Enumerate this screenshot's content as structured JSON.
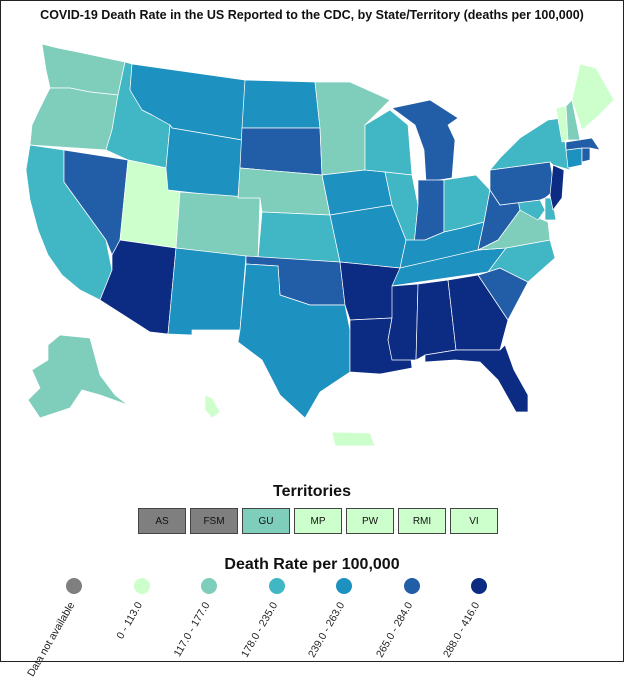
{
  "title": "COVID-19 Death Rate in the US Reported to the CDC, by State/Territory (deaths per 100,000)",
  "territories_title": "Territories",
  "legend_title": "Death Rate per 100,000",
  "colors": {
    "na": "#7f7f7f",
    "c1": "#ccffcc",
    "c2": "#7fcdbb",
    "c3": "#41b6c4",
    "c4": "#1d91c0",
    "c5": "#225ea8",
    "c6": "#0c2c84"
  },
  "chart_data": {
    "type": "choropleth",
    "legend": [
      {
        "label": "Data not available",
        "color": "#7f7f7f"
      },
      {
        "label": "0 - 113.0",
        "color": "#ccffcc"
      },
      {
        "label": "117.0 - 177.0",
        "color": "#7fcdbb"
      },
      {
        "label": "178.0 - 235.0",
        "color": "#41b6c4"
      },
      {
        "label": "239.0 - 263.0",
        "color": "#1d91c0"
      },
      {
        "label": "265.0 - 284.0",
        "color": "#225ea8"
      },
      {
        "label": "288.0 - 416.0",
        "color": "#0c2c84"
      }
    ],
    "territories": [
      {
        "label": "AS",
        "color": "#7f7f7f"
      },
      {
        "label": "FSM",
        "color": "#7f7f7f"
      },
      {
        "label": "GU",
        "color": "#7fcdbb"
      },
      {
        "label": "MP",
        "color": "#ccffcc"
      },
      {
        "label": "PW",
        "color": "#ccffcc"
      },
      {
        "label": "RMI",
        "color": "#ccffcc"
      },
      {
        "label": "VI",
        "color": "#ccffcc"
      }
    ],
    "state_categories": {
      "WA": "c2",
      "OR": "c2",
      "CA": "c3",
      "NV": "c5",
      "ID": "c3",
      "UT": "c1",
      "AZ": "c6",
      "MT": "c4",
      "WY": "c4",
      "CO": "c2",
      "NM": "c4",
      "ND": "c4",
      "SD": "c5",
      "NE": "c2",
      "KS": "c3",
      "OK": "c5",
      "TX": "c4",
      "MN": "c2",
      "IA": "c4",
      "MO": "c4",
      "AR": "c6",
      "LA": "c6",
      "WI": "c3",
      "IL": "c3",
      "MI": "c5",
      "IN": "c5",
      "OH": "c3",
      "KY": "c4",
      "TN": "c4",
      "MS": "c6",
      "AL": "c6",
      "GA": "c6",
      "FL": "c6",
      "SC": "c5",
      "NC": "c3",
      "VA": "c2",
      "WV": "c5",
      "MD": "c3",
      "DE": "c3",
      "PA": "c5",
      "NJ": "c6",
      "NY": "c3",
      "CT": "c4",
      "RI": "c5",
      "MA": "c5",
      "VT": "c1",
      "NH": "c2",
      "ME": "c1",
      "AK": "c2",
      "HI": "c1",
      "PR": "c1"
    }
  }
}
